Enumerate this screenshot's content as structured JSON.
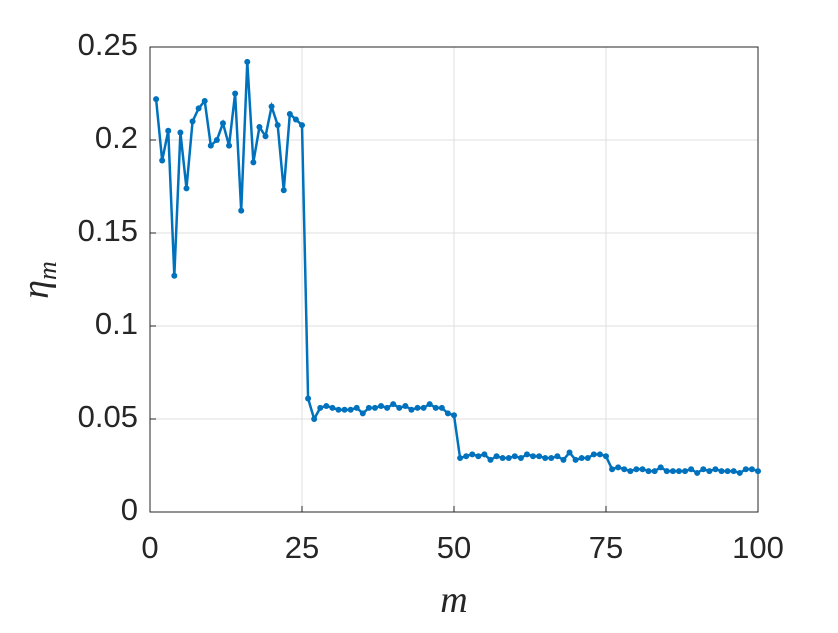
{
  "chart_data": {
    "type": "line",
    "xlabel": "m",
    "ylabel": "η",
    "ylabel_subscript": "m",
    "x": [
      1,
      2,
      3,
      4,
      5,
      6,
      7,
      8,
      9,
      10,
      11,
      12,
      13,
      14,
      15,
      16,
      17,
      18,
      19,
      20,
      21,
      22,
      23,
      24,
      25,
      26,
      27,
      28,
      29,
      30,
      31,
      32,
      33,
      34,
      35,
      36,
      37,
      38,
      39,
      40,
      41,
      42,
      43,
      44,
      45,
      46,
      47,
      48,
      49,
      50,
      51,
      52,
      53,
      54,
      55,
      56,
      57,
      58,
      59,
      60,
      61,
      62,
      63,
      64,
      65,
      66,
      67,
      68,
      69,
      70,
      71,
      72,
      73,
      74,
      75,
      76,
      77,
      78,
      79,
      80,
      81,
      82,
      83,
      84,
      85,
      86,
      87,
      88,
      89,
      90,
      91,
      92,
      93,
      94,
      95,
      96,
      97,
      98,
      99,
      100
    ],
    "series": [
      {
        "color": "#0072bd",
        "values": [
          0.222,
          0.189,
          0.205,
          0.127,
          0.204,
          0.174,
          0.21,
          0.217,
          0.221,
          0.197,
          0.2,
          0.209,
          0.197,
          0.225,
          0.162,
          0.242,
          0.188,
          0.207,
          0.202,
          0.218,
          0.208,
          0.173,
          0.214,
          0.211,
          0.208,
          0.061,
          0.05,
          0.056,
          0.057,
          0.056,
          0.055,
          0.055,
          0.055,
          0.056,
          0.053,
          0.056,
          0.056,
          0.057,
          0.056,
          0.058,
          0.056,
          0.057,
          0.055,
          0.056,
          0.056,
          0.058,
          0.056,
          0.056,
          0.053,
          0.052,
          0.029,
          0.03,
          0.031,
          0.03,
          0.031,
          0.028,
          0.03,
          0.029,
          0.029,
          0.03,
          0.029,
          0.031,
          0.03,
          0.03,
          0.029,
          0.029,
          0.03,
          0.028,
          0.032,
          0.028,
          0.029,
          0.029,
          0.031,
          0.031,
          0.03,
          0.023,
          0.024,
          0.023,
          0.022,
          0.023,
          0.023,
          0.022,
          0.022,
          0.024,
          0.022,
          0.022,
          0.022,
          0.022,
          0.023,
          0.021,
          0.023,
          0.022,
          0.023,
          0.022,
          0.022,
          0.022,
          0.021,
          0.023,
          0.023,
          0.022
        ]
      }
    ],
    "xlim": [
      0,
      100
    ],
    "xticks": [
      0,
      25,
      50,
      75,
      100
    ],
    "ylim": [
      0,
      0.25
    ],
    "yticks": [
      0,
      0.05,
      0.1,
      0.15,
      0.2,
      0.25
    ],
    "grid": true
  }
}
